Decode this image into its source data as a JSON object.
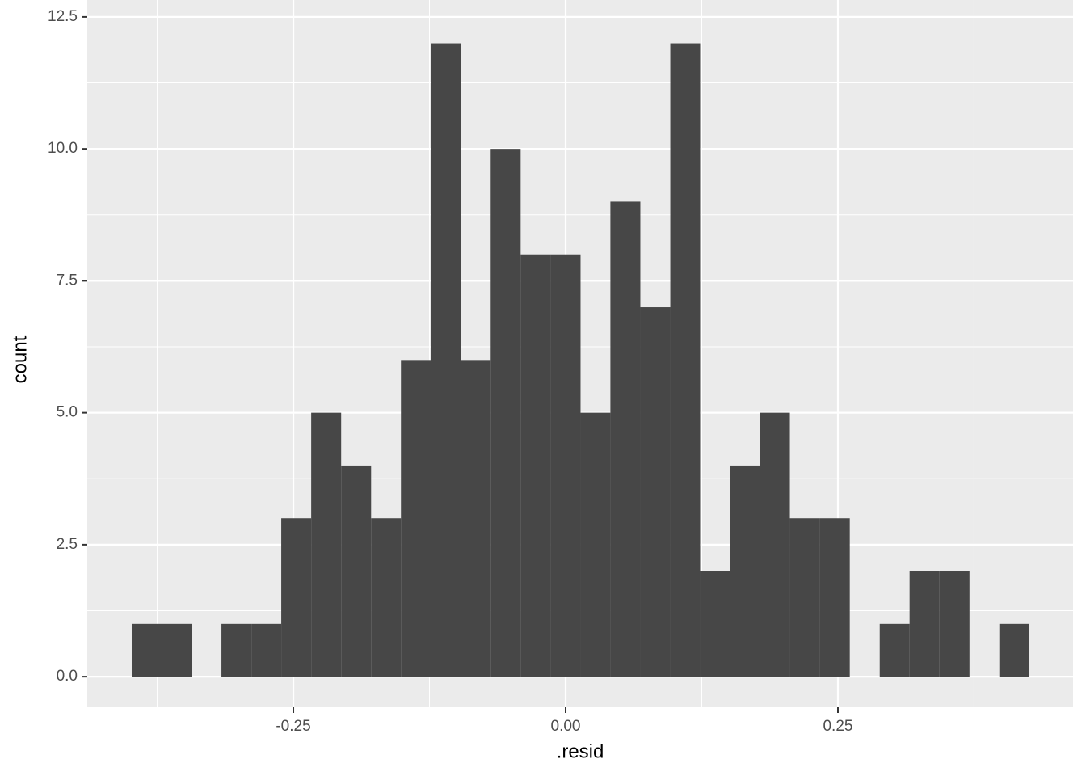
{
  "chart_data": {
    "type": "histogram",
    "x_label": ".resid",
    "y_label": "count",
    "bins": [
      -0.3984,
      -0.3709,
      -0.3435,
      -0.316,
      -0.2885,
      -0.2611,
      -0.2336,
      -0.2061,
      -0.1786,
      -0.1512,
      -0.1237,
      -0.0962,
      -0.0688,
      -0.0413,
      -0.0138,
      0.0137,
      0.0411,
      0.0686,
      0.0961,
      0.1235,
      0.151,
      0.1785,
      0.2059,
      0.2334,
      0.2609,
      0.2884,
      0.3158,
      0.3433,
      0.3708,
      0.3982,
      0.4257
    ],
    "values": [
      1,
      1,
      0,
      1,
      1,
      3,
      5,
      4,
      3,
      6,
      12,
      6,
      10,
      8,
      8,
      5,
      9,
      7,
      12,
      2,
      4,
      5,
      3,
      3,
      0,
      1,
      2,
      2,
      0,
      1
    ],
    "color": "#474747",
    "xlim": [
      -0.4392,
      0.4659
    ],
    "xticks": [
      -0.25,
      {
        "value": 0,
        "label": "0.00"
      },
      0.25
    ],
    "ylim": [
      -0.58,
      12.82
    ],
    "yticks": [
      {
        "value": 0,
        "label": "0.0"
      },
      2.5,
      {
        "value": 5,
        "label": "5.0"
      },
      7.5,
      {
        "value": 10,
        "label": "10.0"
      },
      12.5
    ],
    "grid": true
  }
}
